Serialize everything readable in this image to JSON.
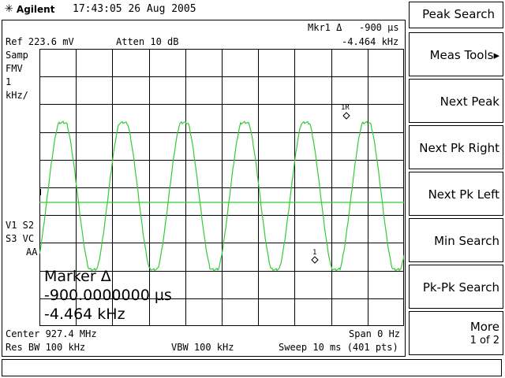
{
  "header": {
    "brand": "Agilent",
    "datetime": "17:43:05  26 Aug 2005",
    "logo_icon": "agilent-spark-icon"
  },
  "screen": {
    "ref_level": "Ref 223.6 mV",
    "atten": "Atten 10 dB",
    "marker_top_label": "Mkr1 Δ",
    "marker_top_time": "-900 µs",
    "marker_top_freq": "-4.464 kHz",
    "left_annotations": [
      "Samp",
      "FMV",
      "1",
      "kHz/"
    ],
    "trace_annotations": [
      "V1  S2",
      "S3  VC",
      "AA"
    ],
    "marker_readout": {
      "title": "Marker Δ",
      "time": "-900.0000000 µs",
      "freq": "-4.464 kHz"
    },
    "markers": {
      "ref_label": "1R",
      "delta_label": "1"
    },
    "center": "Center 927.4 MHz",
    "span": "Span 0 Hz",
    "res_bw": "Res BW 100 kHz",
    "vbw": "VBW 100 kHz",
    "sweep": "Sweep 10 ms (401 pts)",
    "trace_color": "#33cc33"
  },
  "softkeys": {
    "title": "Peak Search",
    "items": [
      {
        "label": "Meas Tools▸"
      },
      {
        "label": "Next Peak"
      },
      {
        "label": "Next Pk Right"
      },
      {
        "label": "Next Pk Left"
      },
      {
        "label": "Min Search"
      },
      {
        "label": "Pk-Pk Search"
      }
    ],
    "more": {
      "label": "More",
      "page": "1 of 2"
    }
  }
}
